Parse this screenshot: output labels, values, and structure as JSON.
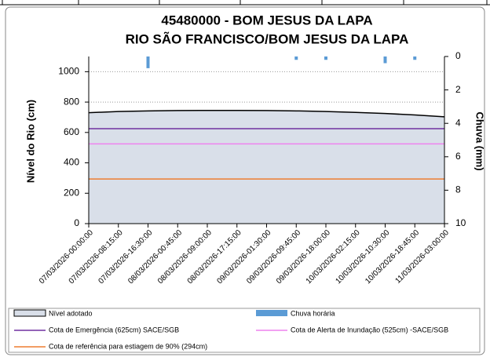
{
  "chart_data": {
    "type": "area",
    "title": "45480000 - BOM JESUS DA LAPA",
    "subtitle": "RIO SÃO FRANCISCO/BOM JESUS DA LAPA",
    "y_label": "Nível do Rio (cm)",
    "y2_label": "Chuva (mm)",
    "categories": [
      "07/03/2026-00:00:00",
      "07/03/2026-08:15:00",
      "07/03/2026-16:30:00",
      "08/03/2026-00:45:00",
      "08/03/2026-09:00:00",
      "08/03/2026-17:15:00",
      "09/03/2026-01:30:00",
      "09/03/2026-09:45:00",
      "09/03/2026-18:00:00",
      "10/03/2026-02:15:00",
      "10/03/2026-10:30:00",
      "10/03/2026-18:45:00",
      "11/03/2026-03:00:00"
    ],
    "series": [
      {
        "name": "Nível adotado",
        "type": "area",
        "color": "#d9dfe9",
        "values": [
          730,
          738,
          742,
          744,
          745,
          745,
          744,
          742,
          738,
          732,
          725,
          715,
          703
        ]
      },
      {
        "name": "Chuva horária",
        "type": "bar",
        "axis": "y2",
        "color": "#5b9bd5",
        "values": [
          null,
          null,
          0.7,
          null,
          null,
          null,
          null,
          0.2,
          0.2,
          null,
          0.4,
          0.2,
          null
        ]
      }
    ],
    "reference_lines": [
      {
        "name": "Cota de Emergência  (625cm) SACE/SGB",
        "value": 625,
        "color": "#7030a0"
      },
      {
        "name": "Cota de Alerta de Inundação (525cm) -SACE/SGB",
        "value": 525,
        "color": "#ee82ee"
      },
      {
        "name": "Cota de referência para estiagem de 90% (294cm)",
        "value": 294,
        "color": "#ed7d31"
      }
    ],
    "ylim": [
      0,
      1100
    ],
    "yticks": [
      0,
      200,
      400,
      600,
      800,
      1000
    ],
    "y2lim": [
      10,
      0
    ],
    "y2ticks": [
      0,
      2,
      4,
      6,
      8,
      10
    ],
    "grid": true,
    "legend": "bottom"
  }
}
